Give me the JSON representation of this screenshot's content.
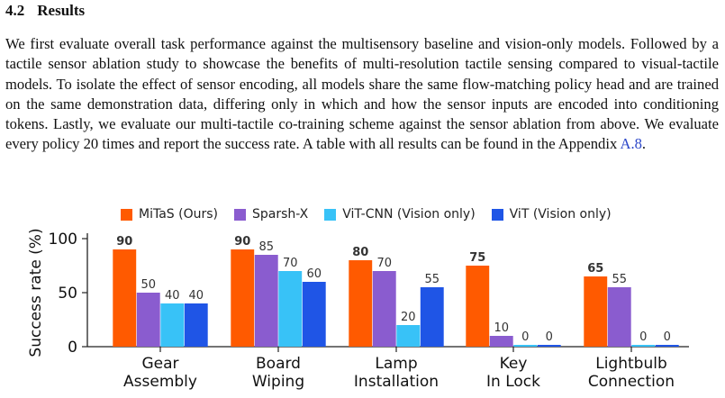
{
  "section": {
    "number": "4.2",
    "title": "Results"
  },
  "paragraph": {
    "text": "We first evaluate overall task performance against the multisensory baseline and vision-only models. Followed by a tactile sensor ablation study to showcase the benefits of multi-resolution tactile sensing compared to visual-tactile models. To isolate the effect of sensor encoding, all models share the same flow-matching policy head and are trained on the same demonstration data, differing only in which and how the sensor inputs are encoded into conditioning tokens. Lastly, we evaluate our multi-tactile co-training scheme against the sensor ablation from above. We evaluate every policy 20 times and report the success rate. A table with all results can be found in the Appendix ",
    "link": "A.8",
    "end": "."
  },
  "chart_data": {
    "type": "bar",
    "ylabel": "Success rate (%)",
    "ylim": [
      0,
      105
    ],
    "yticks": [
      0,
      50,
      100
    ],
    "legend_position": "top",
    "categories": [
      "Gear\nAssembly",
      "Board\nWiping",
      "Lamp\nInstallation",
      "Key\nIn Lock",
      "Lightbulb\nConnection"
    ],
    "series": [
      {
        "name": "MiTaS (Ours)",
        "color": "#ff5a00",
        "values": [
          90,
          90,
          80,
          75,
          65
        ],
        "bold_labels": true
      },
      {
        "name": "Sparsh-X",
        "color": "#8a5ccf",
        "values": [
          50,
          85,
          70,
          10,
          55
        ],
        "bold_labels": false
      },
      {
        "name": "ViT-CNN (Vision only)",
        "color": "#38c2f7",
        "values": [
          40,
          70,
          20,
          0,
          0
        ],
        "bold_labels": false
      },
      {
        "name": "ViT (Vision only)",
        "color": "#1f55e6",
        "values": [
          40,
          60,
          55,
          0,
          0
        ],
        "bold_labels": false
      }
    ]
  }
}
